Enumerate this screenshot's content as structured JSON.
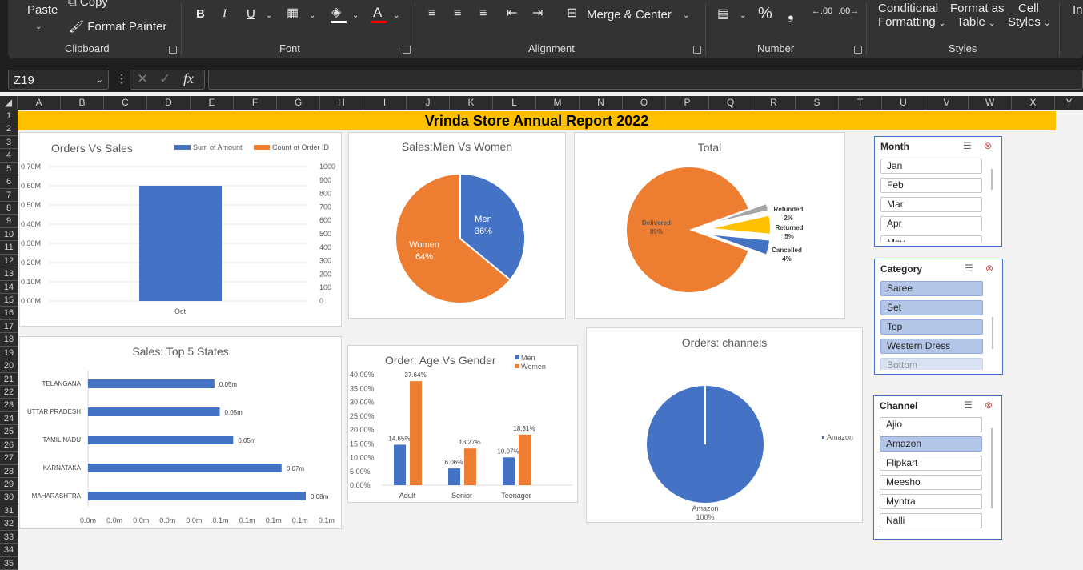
{
  "ribbon": {
    "clipboard": {
      "paste": "Paste",
      "copy": "Copy",
      "format_painter": "Format Painter",
      "group": "Clipboard"
    },
    "font": {
      "group": "Font",
      "bold": "B",
      "italic": "I",
      "underline": "U"
    },
    "alignment": {
      "group": "Alignment",
      "merge_center": "Merge & Center"
    },
    "number": {
      "group": "Number",
      "percent": "%",
      "comma": "❟",
      "inc_decimal": ".00",
      "dec_decimal": ".00"
    },
    "styles": {
      "group": "Styles",
      "conditional_1": "Conditional",
      "conditional_2": "Formatting",
      "format_table_1": "Format as",
      "format_table_2": "Table",
      "cell_styles_1": "Cell",
      "cell_styles_2": "Styles",
      "insert": "In"
    }
  },
  "formula_bar": {
    "name_box": "Z19",
    "formula": ""
  },
  "columns": [
    "A",
    "B",
    "C",
    "D",
    "E",
    "F",
    "G",
    "H",
    "I",
    "J",
    "K",
    "L",
    "M",
    "N",
    "O",
    "P",
    "Q",
    "R",
    "S",
    "T",
    "U",
    "V",
    "W",
    "X",
    "Y"
  ],
  "rows": [
    "1",
    "2",
    "3",
    "4",
    "5",
    "6",
    "7",
    "8",
    "9",
    "10",
    "11",
    "12",
    "13",
    "14",
    "15",
    "16",
    "17",
    "18",
    "19",
    "20",
    "21",
    "22",
    "23",
    "24",
    "25",
    "26",
    "27",
    "28",
    "29",
    "30",
    "31",
    "32",
    "33",
    "34",
    "35"
  ],
  "banner": "Vrinda Store Annual Report 2022",
  "colors": {
    "blue": "#4472c4",
    "orange": "#ed7d31",
    "gray": "#a5a5a5",
    "yellow": "#ffc000",
    "banner": "#ffc000"
  },
  "chart_data": [
    {
      "type": "bar",
      "title": "Orders Vs Sales",
      "categories": [
        "Oct"
      ],
      "series": [
        {
          "name": "Sum of Amount",
          "values": [
            0.6
          ],
          "unit": "M"
        },
        {
          "name": "Count of Order ID",
          "values": [
            0
          ]
        }
      ],
      "yticks_left": [
        "0.70M",
        "0.60M",
        "0.50M",
        "0.40M",
        "0.30M",
        "0.20M",
        "0.10M",
        "0.00M"
      ],
      "yticks_right": [
        "1000",
        "900",
        "800",
        "700",
        "600",
        "500",
        "400",
        "300",
        "200",
        "100",
        "0"
      ],
      "ylim": [
        0,
        0.7
      ],
      "legend": "top"
    },
    {
      "type": "pie",
      "title": "Sales:Men Vs Women",
      "labels": [
        "Men",
        "Women"
      ],
      "values": [
        36,
        64
      ],
      "value_labels": [
        "36%",
        "64%"
      ]
    },
    {
      "type": "pie",
      "title": "Total",
      "labels": [
        "Delivered",
        "Refunded",
        "Returned",
        "Cancelled"
      ],
      "values": [
        89,
        2,
        5,
        4
      ],
      "value_labels": [
        "89%",
        "2%",
        "5%",
        "4%"
      ]
    },
    {
      "type": "bar",
      "orientation": "horizontal",
      "title": "Sales: Top 5 States",
      "categories": [
        "TELANGANA",
        "UTTAR PRADESH",
        "TAMIL NADU",
        "KARNATAKA",
        "MAHARASHTRA"
      ],
      "values": [
        0.047,
        0.049,
        0.054,
        0.072,
        0.081
      ],
      "value_labels": [
        "0.05m",
        "0.05m",
        "0.05m",
        "0.07m",
        "0.08m"
      ],
      "xticks": [
        "0.0m",
        "0.0m",
        "0.0m",
        "0.0m",
        "0.0m",
        "0.1m",
        "0.1m",
        "0.1m",
        "0.1m",
        "0.1m"
      ]
    },
    {
      "type": "bar",
      "title": "Order: Age Vs Gender",
      "categories": [
        "Adult",
        "Senior",
        "Teenager"
      ],
      "series": [
        {
          "name": "Men",
          "values": [
            14.65,
            6.06,
            10.07
          ],
          "labels": [
            "14.65%",
            "6.06%",
            "10.07%"
          ]
        },
        {
          "name": "Women",
          "values": [
            37.64,
            13.27,
            18.31
          ],
          "labels": [
            "37.64%",
            "13.27%",
            "18.31%"
          ]
        }
      ],
      "yticks": [
        "40.00%",
        "35.00%",
        "30.00%",
        "25.00%",
        "20.00%",
        "15.00%",
        "10.00%",
        "5.00%",
        "0.00%"
      ],
      "ylim": [
        0,
        40
      ],
      "legend": "top-right"
    },
    {
      "type": "pie",
      "title": "Orders: channels",
      "labels": [
        "Amazon"
      ],
      "values": [
        100
      ],
      "value_labels": [
        "100%"
      ],
      "legend": "right"
    }
  ],
  "slicers": {
    "month": {
      "title": "Month",
      "items": [
        "Jan",
        "Feb",
        "Mar",
        "Apr",
        "May"
      ]
    },
    "category": {
      "title": "Category",
      "items": [
        "Saree",
        "Set",
        "Top",
        "Western Dress",
        "Bottom"
      ]
    },
    "channel": {
      "title": "Channel",
      "items": [
        "Ajio",
        "Amazon",
        "Flipkart",
        "Meesho",
        "Myntra",
        "Nalli"
      ]
    }
  }
}
